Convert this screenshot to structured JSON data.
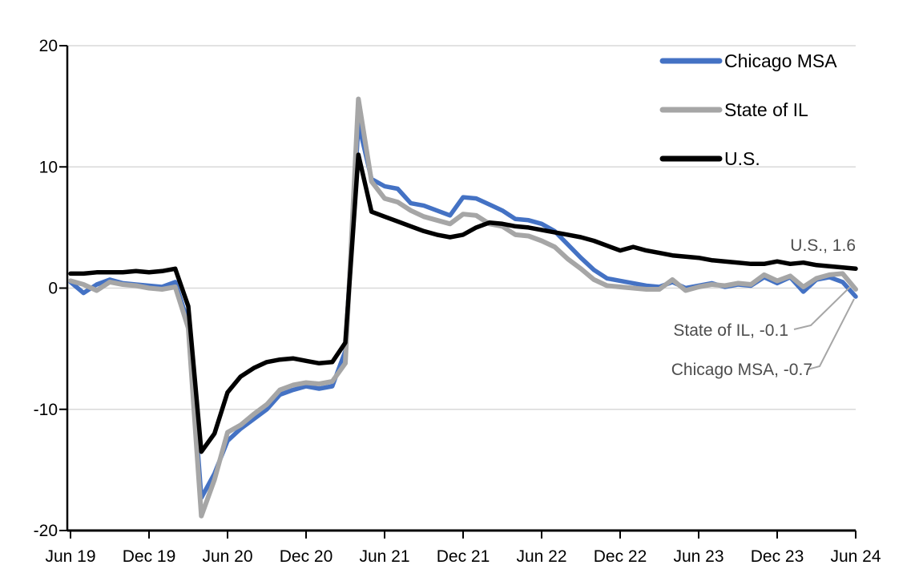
{
  "chart_data": {
    "type": "line",
    "title": "",
    "xlabel": "",
    "ylabel": "",
    "x_unit": "monthly",
    "x_range": [
      "Jun 2019",
      "Jun 2024"
    ],
    "x_tick_labels": [
      "Jun 19",
      "Dec 19",
      "Jun 20",
      "Dec 20",
      "Jun 21",
      "Dec 21",
      "Jun 22",
      "Dec 22",
      "Jun 23",
      "Dec 23",
      "Jun 24"
    ],
    "y_tick_labels": [
      "20",
      "10",
      "0",
      "-10",
      "-20"
    ],
    "y_ticks": [
      20,
      10,
      0,
      -10,
      -20
    ],
    "ylim": [
      -20,
      20
    ],
    "grid": "horizontal-light-gray",
    "gridline_color": "#D9D9D9",
    "legend_position": "top-right",
    "legend": [
      {
        "label": "Chicago MSA",
        "color": "#4472C4"
      },
      {
        "label": "State of IL",
        "color": "#A6A6A6"
      },
      {
        "label": "U.S.",
        "color": "#000000"
      }
    ],
    "series": [
      {
        "name": "Chicago MSA",
        "color": "#4472C4",
        "values": [
          0.5,
          -0.4,
          0.3,
          0.7,
          0.4,
          0.3,
          0.2,
          0.1,
          0.5,
          -2.9,
          -17.3,
          -15.3,
          -12.6,
          -11.6,
          -10.8,
          -10.0,
          -8.8,
          -8.4,
          -8.1,
          -8.3,
          -8.1,
          -5.2,
          13.6,
          9.0,
          8.4,
          8.2,
          7.0,
          6.8,
          6.4,
          6.0,
          7.5,
          7.4,
          6.9,
          6.4,
          5.7,
          5.6,
          5.3,
          4.7,
          3.6,
          2.5,
          1.5,
          0.8,
          0.6,
          0.4,
          0.2,
          0.1,
          0.5,
          0.0,
          0.2,
          0.4,
          0.1,
          0.3,
          0.2,
          0.9,
          0.4,
          0.9,
          -0.3,
          0.7,
          0.9,
          0.5,
          -0.7
        ]
      },
      {
        "name": "State of IL",
        "color": "#A6A6A6",
        "values": [
          0.6,
          0.3,
          -0.2,
          0.5,
          0.3,
          0.2,
          0.0,
          -0.1,
          0.1,
          -3.3,
          -18.8,
          -15.8,
          -11.9,
          -11.3,
          -10.4,
          -9.6,
          -8.4,
          -8.0,
          -7.8,
          -7.9,
          -7.7,
          -6.2,
          15.6,
          8.8,
          7.4,
          7.1,
          6.4,
          5.9,
          5.6,
          5.3,
          6.1,
          6.0,
          5.3,
          5.1,
          4.4,
          4.3,
          3.9,
          3.4,
          2.4,
          1.6,
          0.7,
          0.2,
          0.1,
          0.0,
          -0.1,
          -0.1,
          0.7,
          -0.2,
          0.1,
          0.3,
          0.2,
          0.4,
          0.3,
          1.1,
          0.6,
          1.0,
          0.1,
          0.8,
          1.1,
          1.2,
          -0.1
        ]
      },
      {
        "name": "U.S.",
        "color": "#000000",
        "values": [
          1.2,
          1.2,
          1.3,
          1.3,
          1.3,
          1.4,
          1.3,
          1.4,
          1.6,
          -1.5,
          -13.5,
          -12.0,
          -8.6,
          -7.3,
          -6.6,
          -6.1,
          -5.9,
          -5.8,
          -6.0,
          -6.2,
          -6.1,
          -4.5,
          11.0,
          6.3,
          5.9,
          5.5,
          5.1,
          4.7,
          4.4,
          4.2,
          4.4,
          5.0,
          5.4,
          5.3,
          5.1,
          5.0,
          4.8,
          4.6,
          4.4,
          4.2,
          3.9,
          3.5,
          3.1,
          3.4,
          3.1,
          2.9,
          2.7,
          2.6,
          2.5,
          2.3,
          2.2,
          2.1,
          2.0,
          2.0,
          2.2,
          2.0,
          2.1,
          1.9,
          1.8,
          1.7,
          1.6
        ]
      }
    ],
    "annotations": [
      {
        "text": "U.S., 1.6",
        "series": "U.S.",
        "value": 1.6
      },
      {
        "text": "State of IL, -0.1",
        "series": "State of IL",
        "value": -0.1
      },
      {
        "text": "Chicago MSA, -0.7",
        "series": "Chicago MSA",
        "value": -0.7
      }
    ],
    "annotation_text_color": "#4d4d4d",
    "leader_line_color": "#A6A6A6",
    "axis_color": "#000000"
  }
}
